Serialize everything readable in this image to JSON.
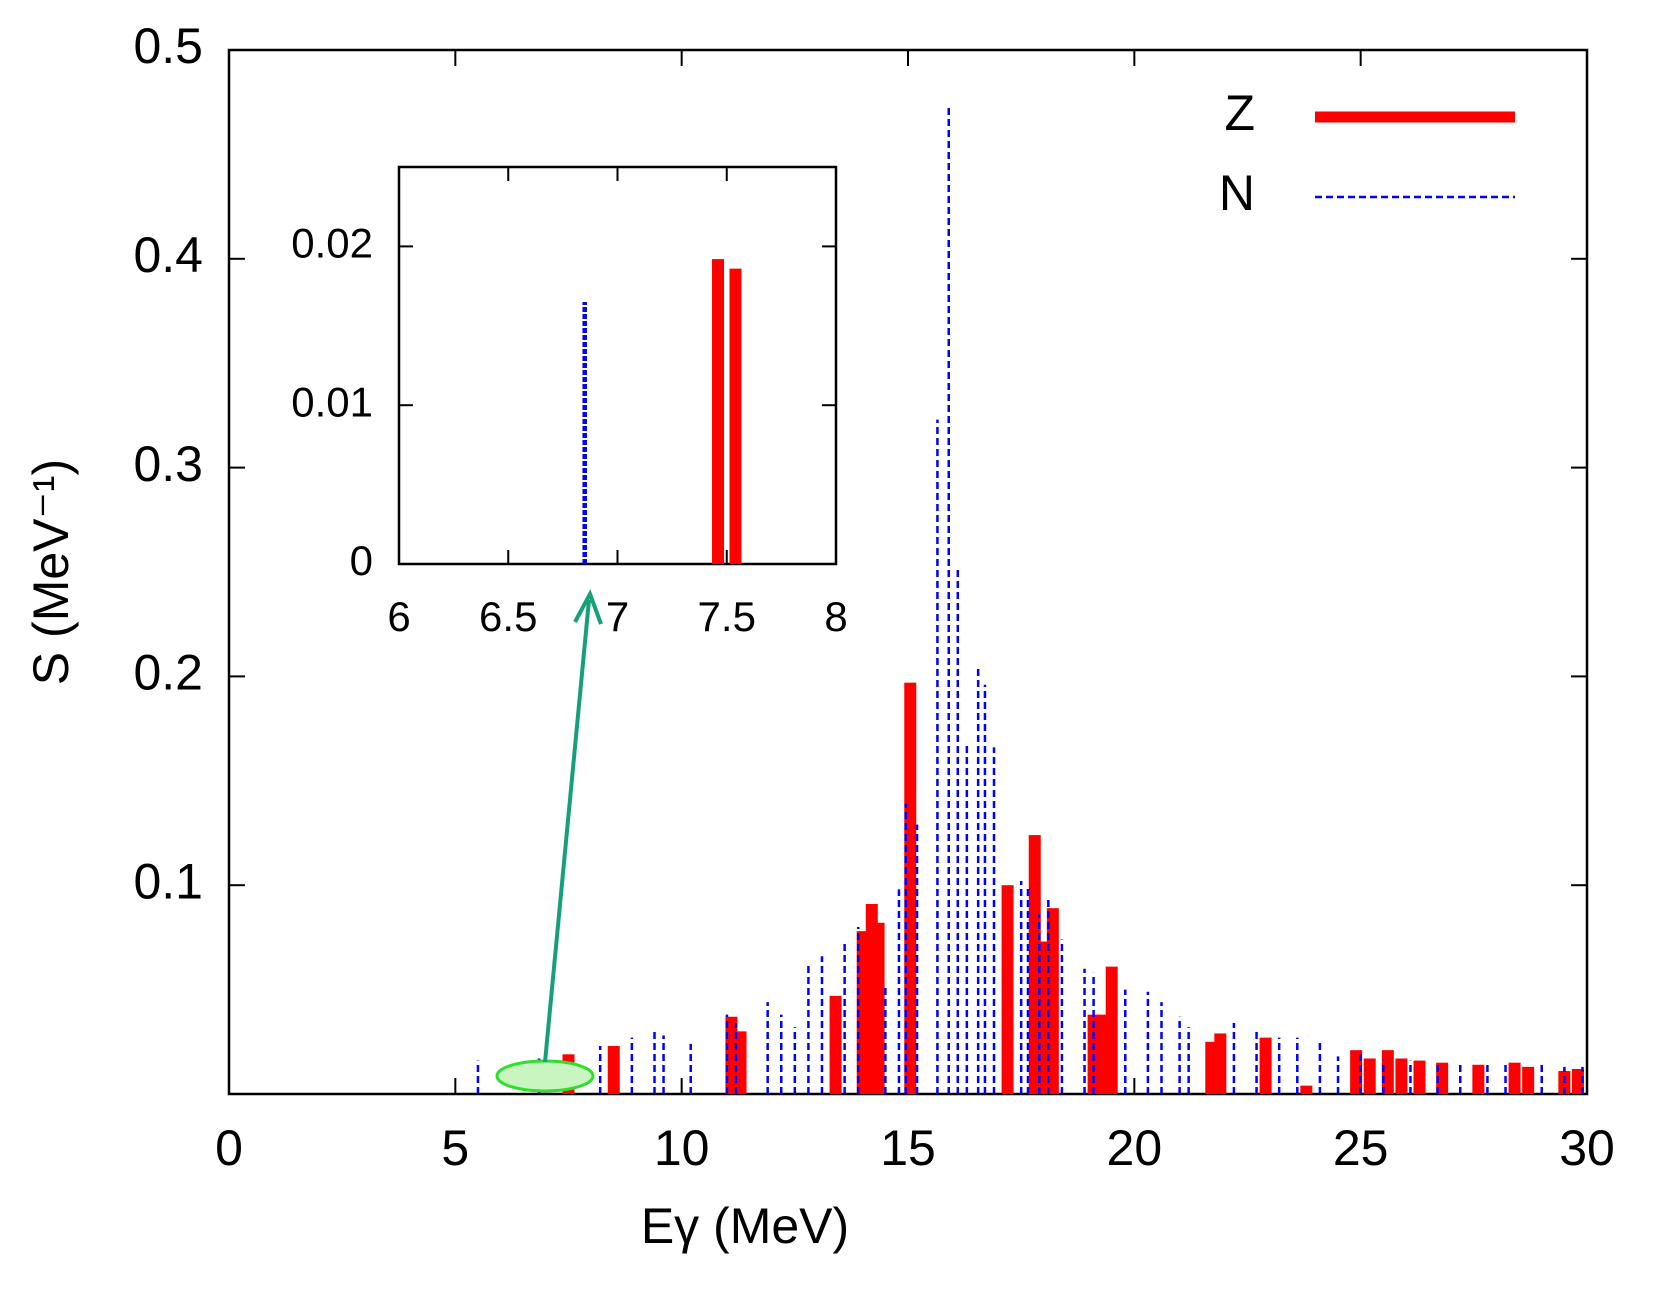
{
  "chart_data": [
    {
      "type": "stick",
      "x_label": "Eγ (MeV)",
      "y_label": "S (MeV⁻¹)",
      "xlim": [
        0,
        30
      ],
      "xticks": [
        0,
        5,
        10,
        15,
        20,
        25,
        30
      ],
      "ylim": [
        0,
        0.5
      ],
      "yticks": [
        0.1,
        0.2,
        0.3,
        0.4,
        0.5
      ],
      "legend": "top-right",
      "series": [
        {
          "name": "Z",
          "color": "#ff0000",
          "x": [
            7.5,
            8.5,
            11.1,
            11.3,
            13.4,
            14.0,
            14.2,
            14.35,
            15.05,
            17.2,
            17.8,
            18.0,
            18.2,
            19.1,
            19.3,
            19.5,
            21.7,
            21.9,
            22.9,
            23.8,
            24.9,
            25.2,
            25.6,
            25.9,
            26.3,
            26.8,
            27.6,
            28.4,
            28.7,
            29.5,
            29.8
          ],
          "values": [
            0.019,
            0.023,
            0.037,
            0.03,
            0.047,
            0.078,
            0.091,
            0.082,
            0.197,
            0.1,
            0.124,
            0.073,
            0.089,
            0.038,
            0.038,
            0.061,
            0.025,
            0.029,
            0.027,
            0.004,
            0.021,
            0.017,
            0.021,
            0.017,
            0.016,
            0.015,
            0.014,
            0.015,
            0.013,
            0.011,
            0.012
          ]
        },
        {
          "name": "N",
          "color": "#0000ff",
          "x": [
            5.5,
            6.85,
            8.2,
            8.9,
            9.4,
            9.6,
            10.2,
            11.0,
            11.2,
            11.9,
            12.2,
            12.5,
            12.8,
            13.1,
            13.6,
            13.9,
            14.5,
            14.8,
            14.95,
            15.2,
            15.65,
            15.9,
            16.1,
            16.3,
            16.55,
            16.7,
            16.9,
            17.5,
            17.65,
            17.9,
            18.1,
            18.4,
            18.9,
            19.1,
            19.8,
            20.3,
            20.6,
            21.0,
            21.2,
            22.2,
            22.7,
            23.2,
            23.6,
            24.1,
            24.5,
            25.0,
            25.5,
            26.1,
            26.7,
            27.2,
            27.8,
            28.2,
            29.0,
            29.5,
            29.9
          ],
          "values": [
            0.016,
            0.017,
            0.023,
            0.027,
            0.03,
            0.028,
            0.024,
            0.038,
            0.034,
            0.044,
            0.038,
            0.032,
            0.062,
            0.066,
            0.072,
            0.08,
            0.052,
            0.098,
            0.139,
            0.129,
            0.323,
            0.473,
            0.252,
            0.167,
            0.204,
            0.196,
            0.166,
            0.102,
            0.1,
            0.086,
            0.094,
            0.074,
            0.06,
            0.058,
            0.05,
            0.049,
            0.044,
            0.037,
            0.032,
            0.034,
            0.03,
            0.027,
            0.027,
            0.025,
            0.018,
            0.019,
            0.016,
            0.016,
            0.014,
            0.014,
            0.014,
            0.015,
            0.015,
            0.013,
            0.013
          ]
        }
      ]
    },
    {
      "type": "stick",
      "xlim": [
        6,
        8
      ],
      "xticks": [
        6,
        6.5,
        7,
        7.5,
        8
      ],
      "ylim": [
        0,
        0.025
      ],
      "yticks": [
        0,
        0.01,
        0.02
      ],
      "series": [
        {
          "color": "#ff0000",
          "x": [
            7.46,
            7.54
          ],
          "values": [
            0.0192,
            0.0186
          ]
        },
        {
          "color": "#0000ff",
          "x": [
            6.85
          ],
          "values": [
            0.0165
          ]
        }
      ]
    }
  ]
}
